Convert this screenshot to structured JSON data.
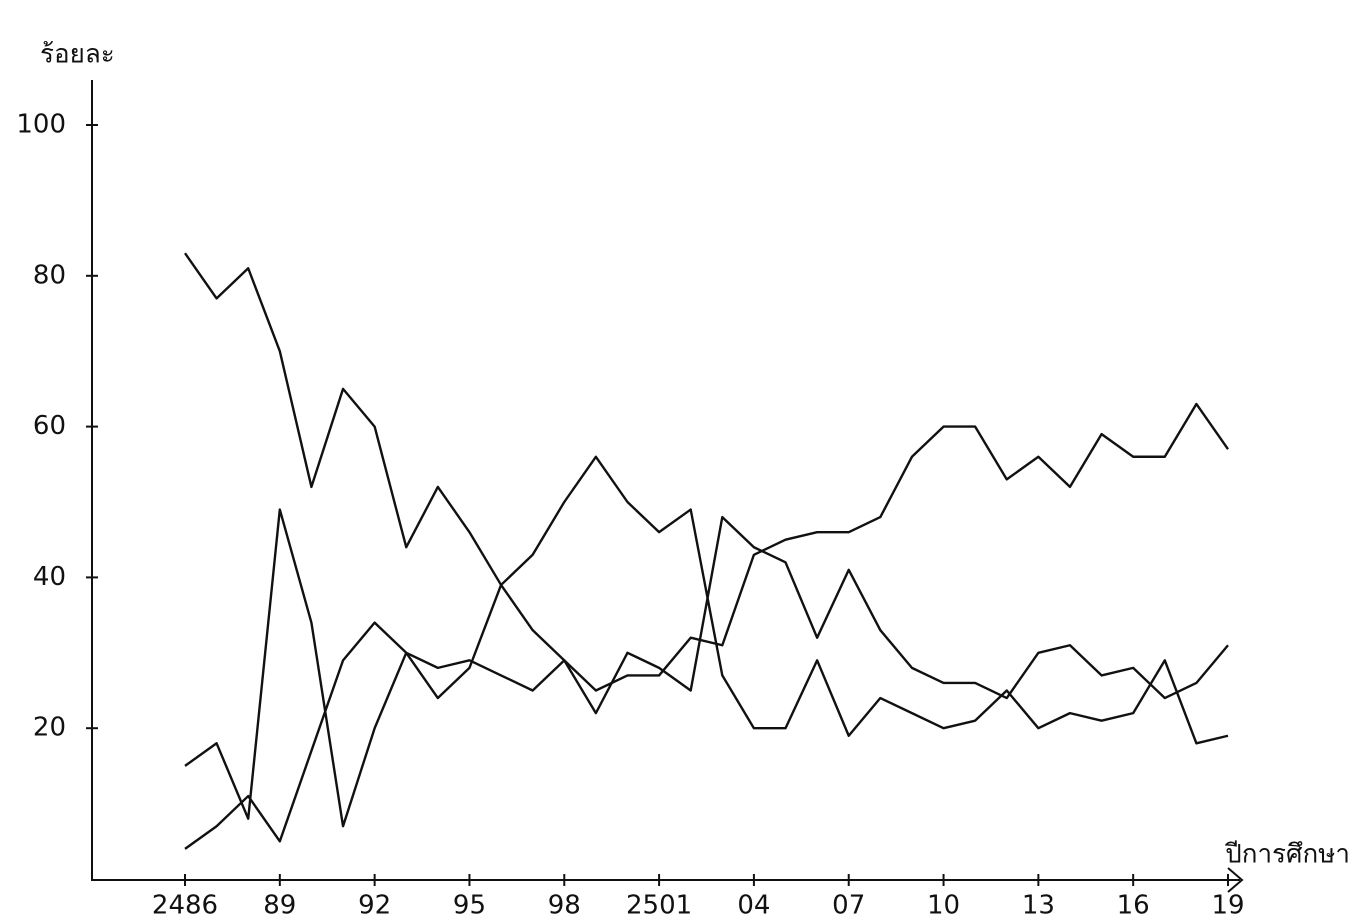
{
  "chart_data": {
    "type": "line",
    "ylabel": "ร้อยละ",
    "xlabel": "ปีการศึกษา",
    "x": [
      2486,
      2487,
      2488,
      2489,
      2490,
      2491,
      2492,
      2493,
      2494,
      2495,
      2496,
      2497,
      2498,
      2499,
      2500,
      2501,
      2502,
      2503,
      2504,
      2505,
      2506,
      2507,
      2508,
      2509,
      2510,
      2511,
      2512,
      2513,
      2514,
      2515,
      2516,
      2517,
      2518,
      2519
    ],
    "series": [
      {
        "color": "#111111",
        "values": [
          83,
          77,
          81,
          70,
          52,
          65,
          60,
          44,
          52,
          46,
          39,
          33,
          29,
          22,
          30,
          28,
          25,
          48,
          44,
          42,
          32,
          41,
          33,
          28,
          26,
          26,
          24,
          30,
          31,
          27,
          28,
          24,
          26,
          31
        ]
      },
      {
        "color": "#111111",
        "values": [
          15,
          18,
          8,
          49,
          34,
          7,
          20,
          30,
          24,
          28,
          39,
          43,
          50,
          56,
          50,
          46,
          49,
          27,
          20,
          20,
          29,
          19,
          24,
          22,
          20,
          21,
          25,
          20,
          22,
          21,
          22,
          29,
          18,
          19
        ]
      },
      {
        "color": "#111111",
        "values": [
          4,
          7,
          11,
          5,
          17,
          29,
          34,
          30,
          28,
          29,
          27,
          25,
          29,
          25,
          27,
          27,
          32,
          31,
          43,
          45,
          46,
          46,
          48,
          56,
          60,
          60,
          53,
          56,
          52,
          59,
          56,
          56,
          63,
          57
        ]
      }
    ],
    "xlim": [
      2486,
      2519
    ],
    "xticks": [
      2486,
      {
        "value": 2489,
        "label": "89"
      },
      {
        "value": 2492,
        "label": "92"
      },
      {
        "value": 2495,
        "label": "95"
      },
      {
        "value": 2498,
        "label": "98"
      },
      2501,
      {
        "value": 2504,
        "label": "04"
      },
      {
        "value": 2507,
        "label": "07"
      },
      {
        "value": 2510,
        "label": "10"
      },
      {
        "value": 2513,
        "label": "13"
      },
      {
        "value": 2516,
        "label": "16"
      },
      {
        "value": 2519,
        "label": "19"
      }
    ],
    "ylim": [
      0,
      106
    ],
    "yticks": [
      20,
      40,
      60,
      80,
      100
    ],
    "grid": false
  }
}
